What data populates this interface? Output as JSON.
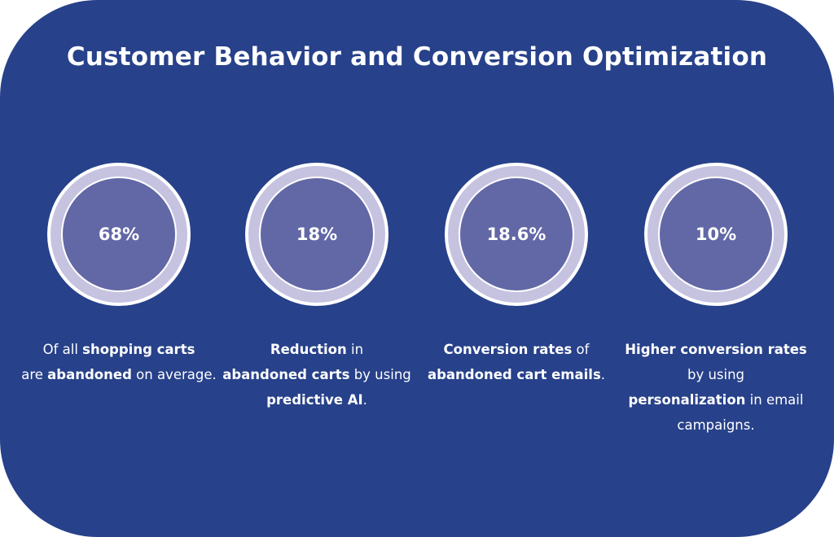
{
  "title": "Customer Behavior and Conversion Optimization",
  "colors": {
    "background": "#27418a",
    "ring": "#c6c3e1",
    "inner_circle": "#6268a6",
    "text": "#ffffff"
  },
  "stats": [
    {
      "value": "68%",
      "description": {
        "p1": "Of all ",
        "b1": "shopping carts",
        "p2": " are ",
        "b2": "abandoned",
        "p3": " on average."
      }
    },
    {
      "value": "18%",
      "description": {
        "b1": "Reduction",
        "p1": " in ",
        "b2": "abandoned carts",
        "p2": " by using ",
        "b3": "predictive AI",
        "p3": "."
      }
    },
    {
      "value": "18.6%",
      "description": {
        "b1": "Conversion rates",
        "p1": " of ",
        "b2": "abandoned cart emails",
        "p2": "."
      }
    },
    {
      "value": "10%",
      "description": {
        "b1": "Higher conversion rates",
        "p1": " by using ",
        "b2": "personalization",
        "p2": " in email campaigns."
      }
    }
  ]
}
